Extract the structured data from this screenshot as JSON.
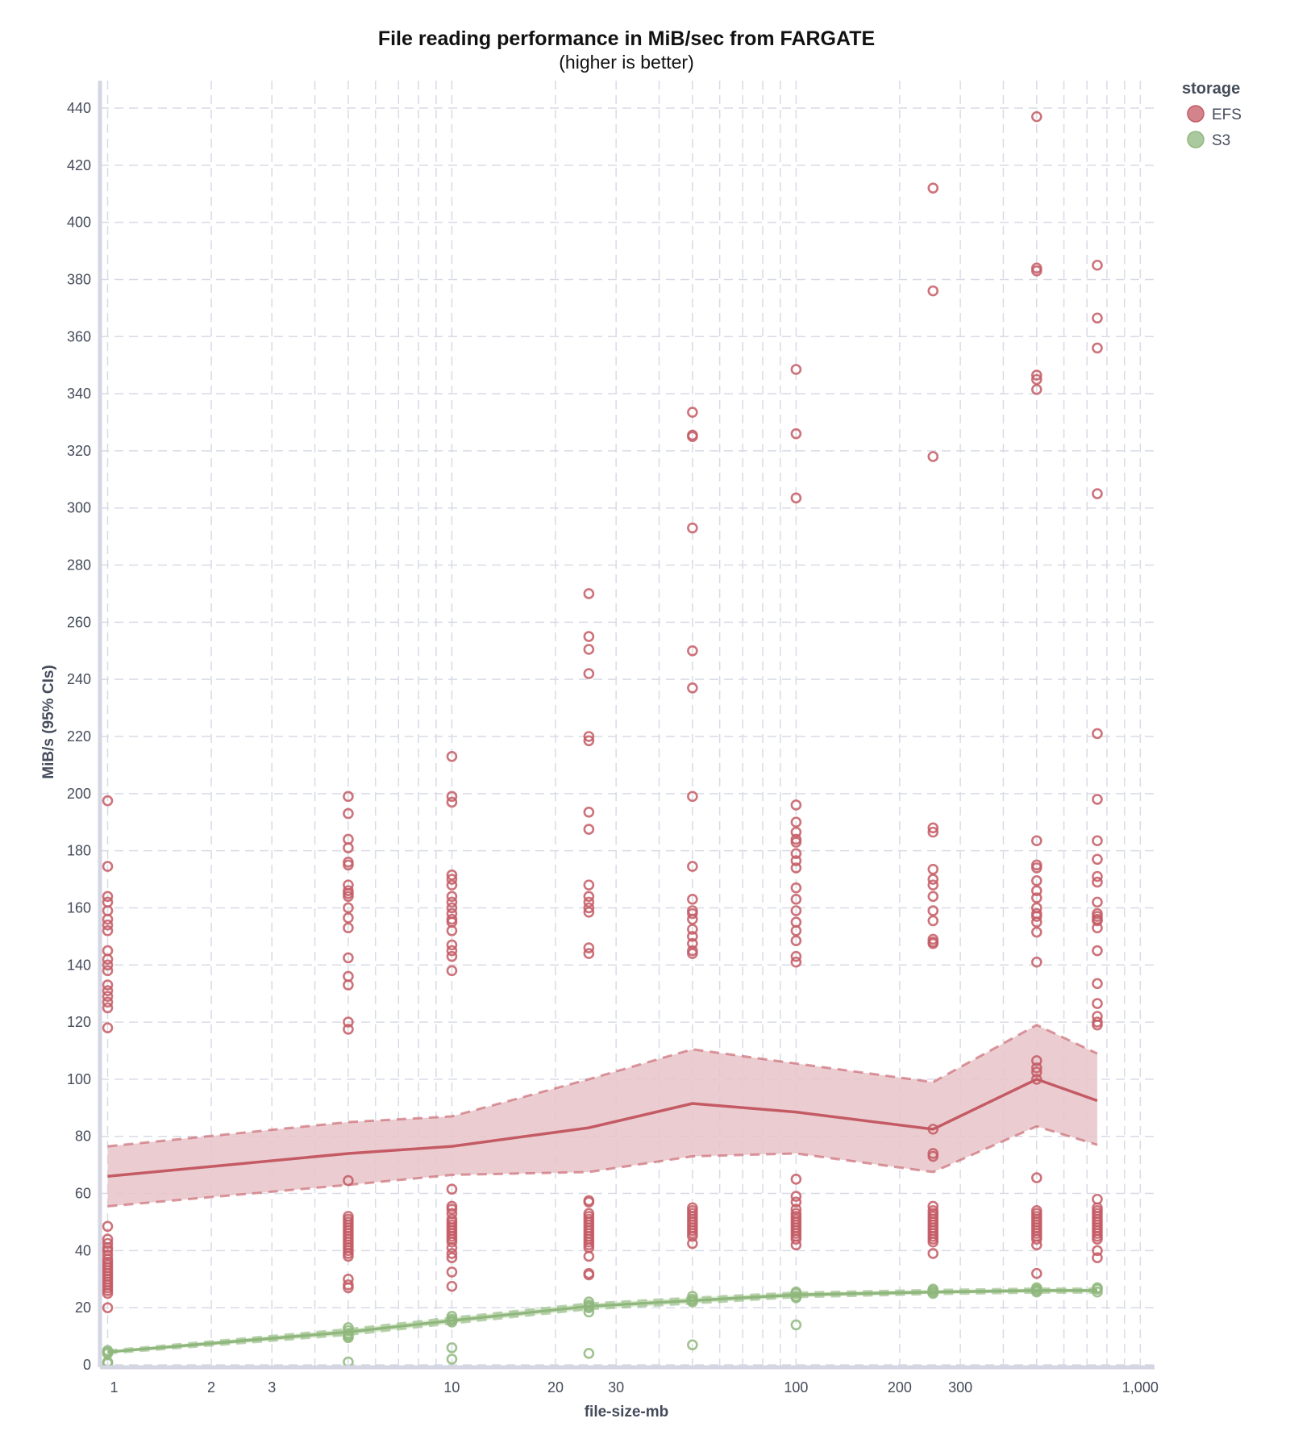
{
  "chart_data": {
    "type": "line",
    "title": "File reading performance in MiB/sec from FARGATE",
    "subtitle": "(higher is better)",
    "xlabel": "file-size-mb",
    "ylabel": "MiB/s (95% CIs)",
    "x_scale": "log",
    "xlim": [
      0.95,
      1100
    ],
    "ylim": [
      0,
      440
    ],
    "y_ticks": [
      0,
      20,
      40,
      60,
      80,
      100,
      120,
      140,
      160,
      180,
      200,
      220,
      240,
      260,
      280,
      300,
      320,
      340,
      360,
      380,
      400,
      420,
      440
    ],
    "x_ticks": [
      {
        "value": 1,
        "label": "1"
      },
      {
        "value": 2,
        "label": "2"
      },
      {
        "value": 3,
        "label": "3"
      },
      {
        "value": 10,
        "label": "10"
      },
      {
        "value": 20,
        "label": "20"
      },
      {
        "value": 30,
        "label": "30"
      },
      {
        "value": 100,
        "label": "100"
      },
      {
        "value": 200,
        "label": "200"
      },
      {
        "value": 300,
        "label": "300"
      },
      {
        "value": 1000,
        "label": "1,000"
      }
    ],
    "grid": true,
    "legend": {
      "title": "storage",
      "position": "top-right"
    },
    "series": [
      {
        "name": "EFS",
        "color": "#c45a64",
        "band_color": "#e8c4c9",
        "mean": [
          {
            "x": 1,
            "y": 66
          },
          {
            "x": 5,
            "y": 74
          },
          {
            "x": 10,
            "y": 76.5
          },
          {
            "x": 25,
            "y": 83
          },
          {
            "x": 50,
            "y": 91.5
          },
          {
            "x": 100,
            "y": 88.5
          },
          {
            "x": 250,
            "y": 82.5
          },
          {
            "x": 500,
            "y": 100
          },
          {
            "x": 750,
            "y": 92.5
          }
        ],
        "ci_upper": [
          {
            "x": 1,
            "y": 76.5
          },
          {
            "x": 5,
            "y": 85
          },
          {
            "x": 10,
            "y": 87
          },
          {
            "x": 25,
            "y": 100
          },
          {
            "x": 50,
            "y": 110.5
          },
          {
            "x": 100,
            "y": 105.5
          },
          {
            "x": 250,
            "y": 99
          },
          {
            "x": 500,
            "y": 119
          },
          {
            "x": 750,
            "y": 109
          }
        ],
        "ci_lower": [
          {
            "x": 1,
            "y": 55.5
          },
          {
            "x": 5,
            "y": 63
          },
          {
            "x": 10,
            "y": 66.5
          },
          {
            "x": 25,
            "y": 67.5
          },
          {
            "x": 50,
            "y": 73
          },
          {
            "x": 100,
            "y": 74
          },
          {
            "x": 250,
            "y": 67.5
          },
          {
            "x": 500,
            "y": 83.5
          },
          {
            "x": 750,
            "y": 77
          }
        ],
        "points": [
          {
            "x": 1,
            "y": [
              197.5,
              174.5,
              164,
              162,
              159,
              156,
              154,
              152,
              145,
              142,
              140,
              138,
              133,
              131,
              129,
              127,
              125,
              118,
              48.5,
              44,
              42.5,
              41,
              40,
              38.5,
              37,
              36,
              35,
              34,
              33,
              32,
              31,
              30,
              29,
              28,
              27,
              26,
              25,
              20
            ]
          },
          {
            "x": 5,
            "y": [
              199,
              193,
              184,
              181,
              176,
              175,
              168,
              166,
              165,
              164,
              160,
              156.5,
              153,
              142.5,
              136,
              133,
              120,
              117.5,
              64.5,
              52,
              51,
              50,
              49,
              48,
              47,
              46,
              45,
              44,
              43,
              42,
              41,
              40,
              39,
              38,
              30,
              28,
              27
            ]
          },
          {
            "x": 10,
            "y": [
              213,
              199,
              197,
              171.5,
              170,
              168,
              164,
              162,
              160,
              158,
              156,
              155,
              152,
              147,
              145,
              143,
              138,
              61.5,
              55.5,
              54.5,
              53,
              51,
              50,
              49,
              48,
              47,
              46,
              45,
              44,
              43,
              41,
              39,
              37.5,
              32.5,
              27.5
            ]
          },
          {
            "x": 25,
            "y": [
              270,
              255,
              250.5,
              242,
              220,
              218.5,
              193.5,
              187.5,
              168,
              164,
              162,
              160,
              158.5,
              146,
              144,
              57.5,
              57,
              53,
              52,
              51,
              50,
              49,
              48,
              47,
              46,
              45,
              44,
              43,
              42,
              41,
              38,
              32,
              31.5
            ]
          },
          {
            "x": 50,
            "y": [
              333.5,
              325.5,
              325,
              293,
              250,
              237,
              199,
              174.5,
              163,
              159,
              158,
              156,
              152.5,
              150,
              147.5,
              145,
              144,
              55,
              54,
              53,
              52,
              51,
              50,
              49,
              48,
              47,
              46,
              45,
              42.5
            ]
          },
          {
            "x": 100,
            "y": [
              348.5,
              326,
              303.5,
              196,
              190,
              186.5,
              184,
              183,
              179,
              176.5,
              174,
              167,
              163,
              159,
              155,
              152,
              148.5,
              143,
              141,
              65,
              59,
              57,
              54.5,
              53,
              52,
              51,
              50,
              49,
              48,
              47,
              46,
              45,
              44,
              42
            ]
          },
          {
            "x": 250,
            "y": [
              412,
              376,
              318,
              188,
              186.5,
              173.5,
              170,
              168,
              164,
              159,
              155.5,
              149,
              148,
              147.5,
              82.5,
              74,
              73,
              55.5,
              54,
              53,
              52,
              51,
              50,
              49,
              48,
              47,
              46,
              45,
              44,
              43,
              39
            ]
          },
          {
            "x": 500,
            "y": [
              437,
              384,
              383,
              346.5,
              345,
              341.5,
              183.5,
              175,
              174,
              169.5,
              166,
              163.5,
              160,
              158,
              157,
              155,
              151.5,
              141,
              106.5,
              104,
              102.5,
              100,
              65.5,
              54,
              53,
              52,
              51,
              50,
              49,
              48,
              47,
              46,
              45,
              44,
              42,
              32
            ]
          },
          {
            "x": 750,
            "y": [
              385,
              366.5,
              356,
              305,
              221,
              198,
              183.5,
              177,
              171,
              169,
              162,
              158,
              157,
              156,
              155.5,
              153,
              145,
              133.5,
              126.5,
              122,
              120,
              119,
              58,
              55,
              54,
              53,
              52,
              51,
              50,
              49,
              48,
              47,
              46,
              45,
              44,
              40,
              37.5
            ]
          }
        ]
      },
      {
        "name": "S3",
        "color": "#8fb77d",
        "band_color": "#d3e5c7",
        "mean": [
          {
            "x": 1,
            "y": 4.5
          },
          {
            "x": 5,
            "y": 11.5
          },
          {
            "x": 10,
            "y": 15.5
          },
          {
            "x": 25,
            "y": 20.5
          },
          {
            "x": 50,
            "y": 22.5
          },
          {
            "x": 100,
            "y": 24.5
          },
          {
            "x": 250,
            "y": 25.5
          },
          {
            "x": 500,
            "y": 26
          },
          {
            "x": 750,
            "y": 26
          }
        ],
        "ci_upper": [
          {
            "x": 1,
            "y": 5
          },
          {
            "x": 5,
            "y": 12.5
          },
          {
            "x": 10,
            "y": 16.5
          },
          {
            "x": 25,
            "y": 21.5
          },
          {
            "x": 50,
            "y": 23.5
          },
          {
            "x": 100,
            "y": 25.3
          },
          {
            "x": 250,
            "y": 26.2
          },
          {
            "x": 500,
            "y": 26.7
          },
          {
            "x": 750,
            "y": 26.7
          }
        ],
        "ci_lower": [
          {
            "x": 1,
            "y": 4
          },
          {
            "x": 5,
            "y": 10.5
          },
          {
            "x": 10,
            "y": 14.5
          },
          {
            "x": 25,
            "y": 19.5
          },
          {
            "x": 50,
            "y": 21.5
          },
          {
            "x": 100,
            "y": 23.7
          },
          {
            "x": 250,
            "y": 24.8
          },
          {
            "x": 500,
            "y": 25.3
          },
          {
            "x": 750,
            "y": 25.3
          }
        ],
        "points": [
          {
            "x": 1,
            "y": [
              5,
              4.5,
              4,
              1,
              0.5
            ]
          },
          {
            "x": 5,
            "y": [
              13,
              12,
              11,
              10.5,
              10,
              9.5,
              1
            ]
          },
          {
            "x": 10,
            "y": [
              17,
              16,
              15.5,
              15,
              6,
              2
            ]
          },
          {
            "x": 25,
            "y": [
              22,
              21,
              20.5,
              20,
              18.5,
              4
            ]
          },
          {
            "x": 50,
            "y": [
              24,
              23,
              22.5,
              22,
              7
            ]
          },
          {
            "x": 100,
            "y": [
              25.5,
              25,
              24,
              23.5,
              14
            ]
          },
          {
            "x": 250,
            "y": [
              26.5,
              26,
              25.5,
              25
            ]
          },
          {
            "x": 500,
            "y": [
              27,
              26.5,
              26,
              25.5
            ]
          },
          {
            "x": 750,
            "y": [
              27,
              26.5,
              25.5
            ]
          }
        ]
      }
    ]
  }
}
